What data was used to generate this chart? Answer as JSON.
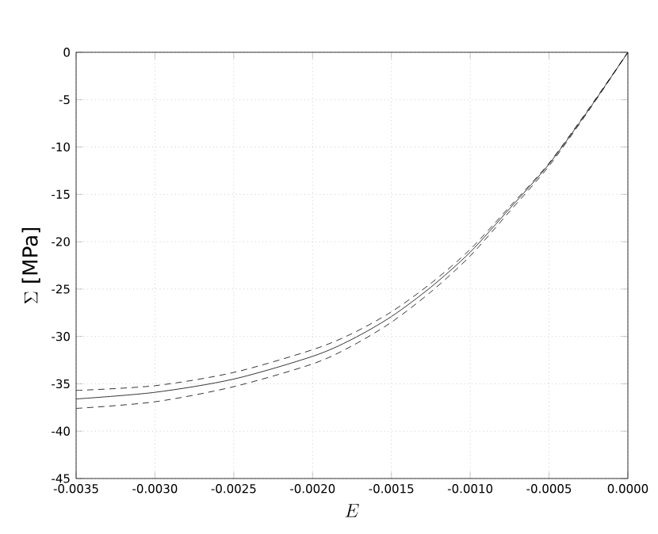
{
  "chart_data": {
    "type": "line",
    "xlabel": "E",
    "ylabel": "\\Sigma\\mbox{ [MPa]}",
    "x": [
      -0.0035,
      -0.003,
      -0.0025,
      -0.002,
      -0.00175,
      -0.0015,
      -0.00125,
      -0.001,
      -0.00075,
      -0.0005,
      -0.00025,
      0
    ],
    "series": [
      {
        "color": "#000000",
        "line_style": "solid",
        "values": [
          -36.6,
          -35.9,
          -34.5,
          -32.1,
          -30.3,
          -27.9,
          -24.8,
          -21.1,
          -16.5,
          -11.8,
          -6.1,
          0
        ]
      },
      {
        "color": "#000000",
        "line_style": "dashed",
        "values": [
          -35.7,
          -35.2,
          -33.8,
          -31.4,
          -29.7,
          -27.4,
          -24.4,
          -20.8,
          -16.3,
          -11.7,
          -6.0,
          0
        ]
      },
      {
        "color": "#000000",
        "line_style": "dashed",
        "values": [
          -37.6,
          -36.9,
          -35.3,
          -32.9,
          -31.0,
          -28.5,
          -25.3,
          -21.5,
          -16.8,
          -12.0,
          -6.2,
          0
        ]
      }
    ],
    "xlim": [
      -0.0035,
      0
    ],
    "ylim": [
      -45,
      0
    ],
    "xticks": [
      {
        "value": -0.0035,
        "label": "-0.0035"
      },
      {
        "value": -0.003,
        "label": "-0.0030"
      },
      {
        "value": -0.0025,
        "label": "-0.0025"
      },
      {
        "value": -0.002,
        "label": "-0.0020"
      },
      {
        "value": -0.0015,
        "label": "-0.0015"
      },
      {
        "value": -0.001,
        "label": "-0.0010"
      },
      {
        "value": -0.0005,
        "label": "-0.0005"
      },
      {
        "value": 0,
        "label": "0.0000"
      }
    ],
    "yticks": [
      -45,
      -40,
      -35,
      -30,
      -25,
      -20,
      -15,
      -10,
      -5,
      0
    ],
    "grid": true
  }
}
